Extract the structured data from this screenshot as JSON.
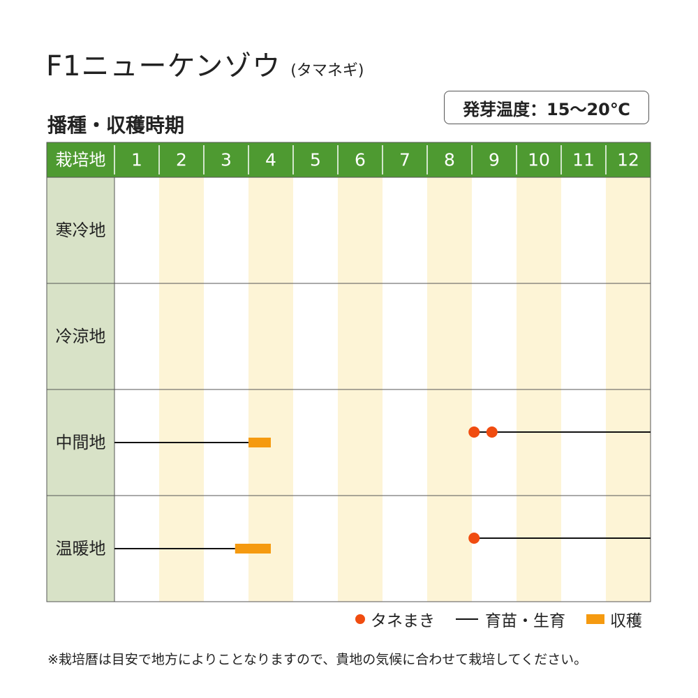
{
  "header": {
    "title": "F1ニューケンゾウ",
    "subtitle": "(タマネギ)",
    "section_title": "播種・収穫時期",
    "germination": "発芽温度：15～20℃"
  },
  "legend": {
    "sowing": "タネまき",
    "growing": "育苗・生育",
    "harvest": "収穫"
  },
  "note": "※栽培暦は目安で地方によりことなりますので、貴地の気候に合わせて栽培してください。",
  "colors": {
    "header_bg": "#4e9a31",
    "region_bg": "#d8e2c7",
    "stripe": "#fdf4d6",
    "sowing": "#f04c10",
    "harvest": "#f59a10",
    "line": "#111111"
  },
  "chart_data": {
    "type": "table",
    "corner_label": "栽培地",
    "months": [
      "1",
      "2",
      "3",
      "4",
      "5",
      "6",
      "7",
      "8",
      "9",
      "10",
      "11",
      "12"
    ],
    "regions": [
      {
        "name": "寒冷地",
        "sowing": [],
        "growing": [],
        "harvest": []
      },
      {
        "name": "冷涼地",
        "sowing": [],
        "growing": [],
        "harvest": []
      },
      {
        "name": "中間地",
        "sowing": [
          9.05,
          9.45
        ],
        "growing": [
          [
            1.0,
            4.0
          ],
          [
            9.05,
            13.0
          ]
        ],
        "harvest": [
          [
            4.0,
            4.5
          ]
        ]
      },
      {
        "name": "温暖地",
        "sowing": [
          9.05
        ],
        "growing": [
          [
            1.0,
            3.7
          ],
          [
            9.05,
            13.0
          ]
        ],
        "harvest": [
          [
            3.7,
            4.5
          ]
        ]
      }
    ]
  }
}
